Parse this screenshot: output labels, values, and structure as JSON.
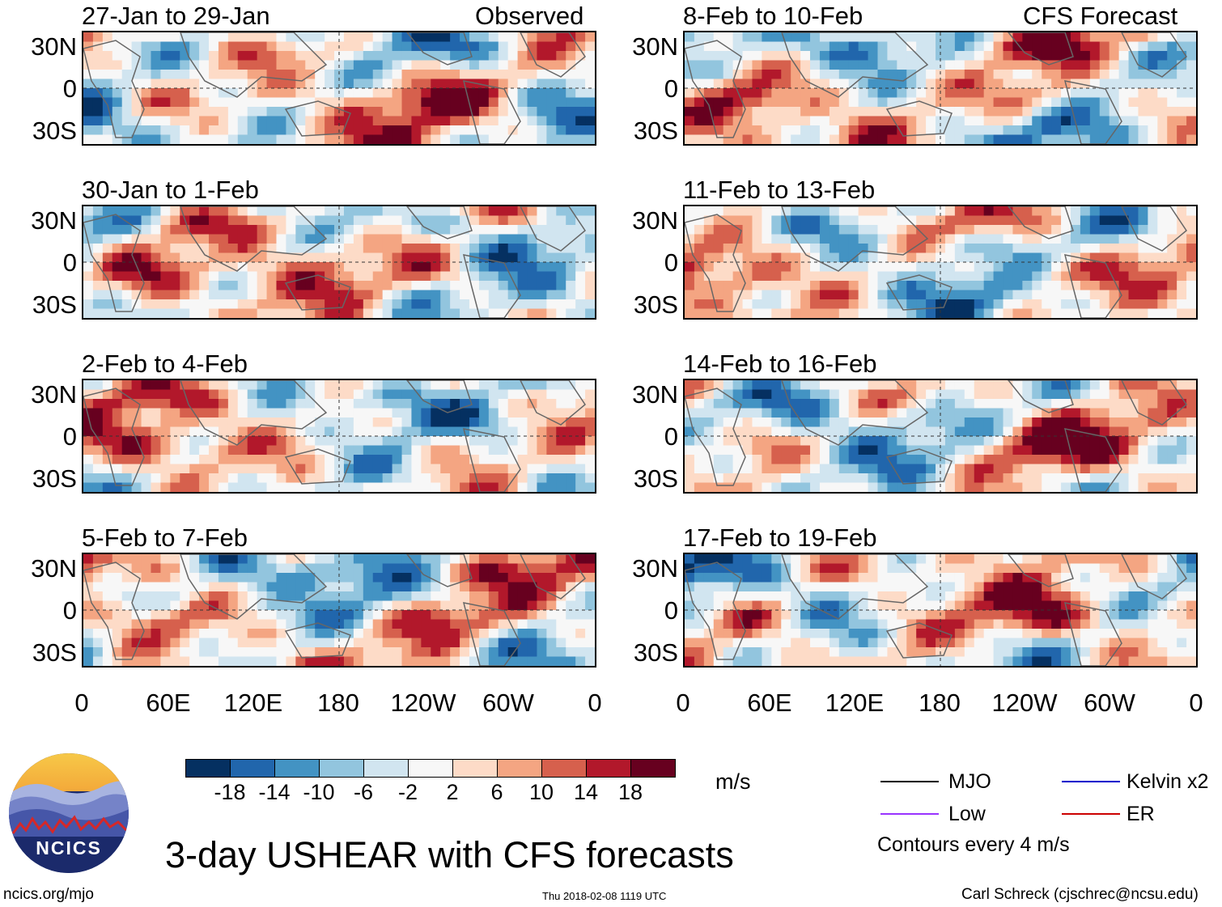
{
  "chart_data": {
    "type": "heatmap",
    "title": "3-day USHEAR with CFS forecasts",
    "units": "m/s",
    "ylabels": [
      "30N",
      "0",
      "30S"
    ],
    "xlabels": [
      "0",
      "60E",
      "120E",
      "180",
      "120W",
      "60W",
      "0"
    ],
    "observed_label": "Observed",
    "forecast_label": "CFS Forecast",
    "panels_left": [
      {
        "period": "27-Jan to 29-Jan"
      },
      {
        "period": "30-Jan to 1-Feb"
      },
      {
        "period": "2-Feb to 4-Feb"
      },
      {
        "period": "5-Feb to 7-Feb"
      }
    ],
    "panels_right": [
      {
        "period": "8-Feb to 10-Feb"
      },
      {
        "period": "11-Feb to 13-Feb"
      },
      {
        "period": "14-Feb to 16-Feb"
      },
      {
        "period": "17-Feb to 19-Feb"
      }
    ],
    "colorbar": {
      "colors": [
        "#053061",
        "#2166ac",
        "#4393c3",
        "#92c5de",
        "#d1e5f0",
        "#f7f7f7",
        "#fddbc7",
        "#f4a582",
        "#d6604d",
        "#b2182b",
        "#67001f"
      ],
      "labels": [
        "-18",
        "-14",
        "-10",
        "-6",
        "-2",
        "2",
        "6",
        "10",
        "14",
        "18"
      ]
    },
    "legend": {
      "items": [
        {
          "name": "MJO",
          "color": "#000000"
        },
        {
          "name": "Kelvin x2",
          "color": "#0000cc"
        },
        {
          "name": "Low",
          "color": "#9933ff"
        },
        {
          "name": "ER",
          "color": "#cc0000"
        }
      ],
      "note": "Contours every 4 m/s"
    }
  },
  "logo": {
    "text": "NCICS"
  },
  "footer": {
    "site": "ncics.org/mjo",
    "timestamp": "Thu 2018-02-08 1119 UTC",
    "author": "Carl Schreck (cjschrec@ncsu.edu)"
  }
}
